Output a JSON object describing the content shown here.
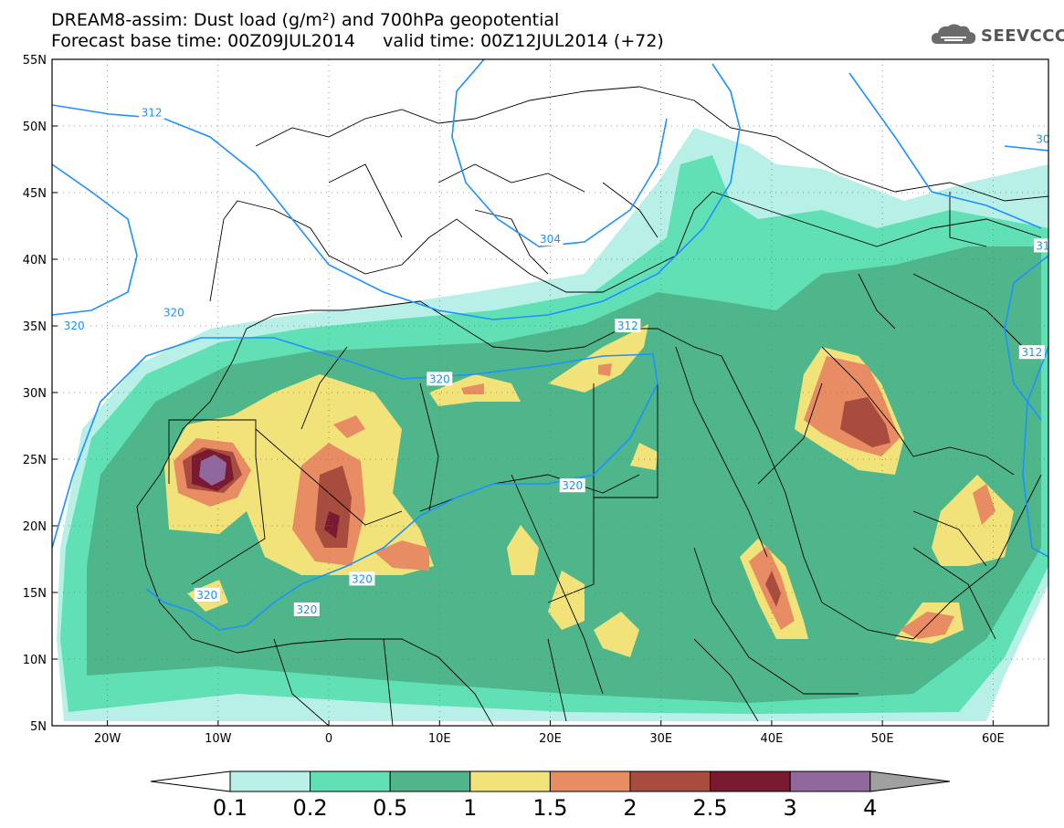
{
  "title": {
    "line1": "DREAM8-assim: Dust load (g/m²) and 700hPa geopotential",
    "line2": "Forecast base time: 00Z09JUL2014     valid time: 00Z12JUL2014 (+72)"
  },
  "brand": {
    "name": "SEEVCCC",
    "icon": "cloud-icon"
  },
  "map": {
    "lon_range": [
      -25,
      65
    ],
    "lat_range": [
      5,
      55
    ],
    "lat_labels": [
      "55N",
      "50N",
      "45N",
      "40N",
      "35N",
      "30N",
      "25N",
      "20N",
      "15N",
      "10N",
      "5N"
    ],
    "lon_labels": [
      "20W",
      "10W",
      "0",
      "10E",
      "20E",
      "30E",
      "40E",
      "50E",
      "60E"
    ],
    "contour_labels": [
      {
        "text": "312",
        "lon": -16,
        "lat": 51
      },
      {
        "text": "312",
        "lon": 27,
        "lat": 35
      },
      {
        "text": "304",
        "lon": 20,
        "lat": 41.5
      },
      {
        "text": "320",
        "lon": -23,
        "lat": 35
      },
      {
        "text": "320",
        "lon": -14,
        "lat": 36
      },
      {
        "text": "320",
        "lon": 10,
        "lat": 31
      },
      {
        "text": "320",
        "lon": 22,
        "lat": 23
      },
      {
        "text": "320",
        "lon": 3,
        "lat": 16
      },
      {
        "text": "320",
        "lon": -11,
        "lat": 14.8
      },
      {
        "text": "320",
        "lon": -2,
        "lat": 13.7
      },
      {
        "text": "312",
        "lon": 63.5,
        "lat": 33
      },
      {
        "text": "31",
        "lon": 64.5,
        "lat": 41
      },
      {
        "text": "30",
        "lon": 64.5,
        "lat": 49
      }
    ]
  },
  "colorbar": {
    "labels": [
      "0.1",
      "0.2",
      "0.5",
      "1",
      "1.5",
      "2",
      "2.5",
      "3",
      "4"
    ],
    "colors": [
      "#b8efe6",
      "#60e0b4",
      "#4fb68c",
      "#f1e37a",
      "#e88c64",
      "#a84c3f",
      "#7a1a30",
      "#90689e",
      "#a0a0a0"
    ]
  },
  "colors": {
    "geopotential": "#1e90ff",
    "borders": "#000000"
  }
}
